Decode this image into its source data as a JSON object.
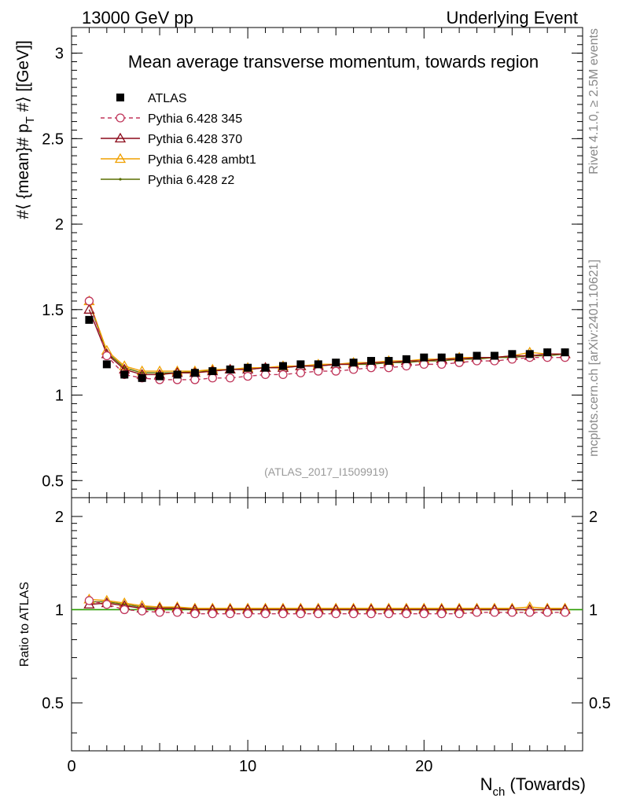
{
  "header": {
    "left": "13000 GeV pp",
    "right": "Underlying Event"
  },
  "side_labels": {
    "rivet": "Rivet 4.1.0, ≥ 2.5M events",
    "mcplots": "mcplots.cern.ch [arXiv:2401.10621]"
  },
  "colors": {
    "atlas": "#000000",
    "p345": "#c0355a",
    "p370": "#8b0a1a",
    "ambt1": "#f0a000",
    "z2": "#5a6e00",
    "ratio_ref": "#2a9d00"
  },
  "chart_data": [
    {
      "type": "line",
      "title": "Mean average transverse momentum, towards region",
      "ylabel": "#⟨ {mean}# p_T #⟩ [[GeV]]",
      "ylabel_parts": {
        "main": "#⟨ {mean}# p",
        "sub": "T",
        "rest": " #⟩ [[GeV]]"
      },
      "xlabel": "",
      "xlim": [
        0,
        29
      ],
      "ylim": [
        0.4,
        3.15
      ],
      "yticks": [
        0.5,
        1,
        1.5,
        2,
        2.5,
        3
      ],
      "ytick_labels": [
        "0.5",
        "1",
        "1.5",
        "2",
        "2.5",
        "3"
      ],
      "watermark": "(ATLAS_2017_I1509919)",
      "x": [
        1,
        2,
        3,
        4,
        5,
        6,
        7,
        8,
        9,
        10,
        11,
        12,
        13,
        14,
        15,
        16,
        17,
        18,
        19,
        20,
        21,
        22,
        23,
        24,
        25,
        26,
        27,
        28
      ],
      "series": [
        {
          "name": "ATLAS",
          "key": "atlas",
          "marker": "square",
          "line": "none",
          "values": [
            1.44,
            1.18,
            1.12,
            1.1,
            1.11,
            1.12,
            1.13,
            1.14,
            1.15,
            1.16,
            1.16,
            1.17,
            1.18,
            1.18,
            1.19,
            1.19,
            1.2,
            1.2,
            1.21,
            1.22,
            1.22,
            1.22,
            1.23,
            1.23,
            1.24,
            1.24,
            1.25,
            1.25
          ]
        },
        {
          "name": "Pythia 6.428 345",
          "key": "p345",
          "marker": "circle-open",
          "line": "dashed",
          "values": [
            1.55,
            1.23,
            1.12,
            1.1,
            1.09,
            1.09,
            1.09,
            1.1,
            1.1,
            1.11,
            1.12,
            1.12,
            1.13,
            1.14,
            1.14,
            1.15,
            1.16,
            1.16,
            1.17,
            1.18,
            1.18,
            1.19,
            1.2,
            1.2,
            1.21,
            1.22,
            1.22,
            1.22
          ]
        },
        {
          "name": "Pythia 6.428 370",
          "key": "p370",
          "marker": "triangle-open",
          "line": "solid",
          "values": [
            1.5,
            1.24,
            1.15,
            1.12,
            1.12,
            1.13,
            1.13,
            1.14,
            1.15,
            1.15,
            1.16,
            1.16,
            1.17,
            1.17,
            1.18,
            1.18,
            1.19,
            1.19,
            1.2,
            1.2,
            1.21,
            1.21,
            1.22,
            1.22,
            1.23,
            1.23,
            1.24,
            1.24
          ]
        },
        {
          "name": "Pythia 6.428 ambt1",
          "key": "ambt1",
          "marker": "triangle-open",
          "line": "solid",
          "values": [
            1.55,
            1.26,
            1.17,
            1.14,
            1.14,
            1.14,
            1.14,
            1.15,
            1.15,
            1.16,
            1.16,
            1.17,
            1.17,
            1.18,
            1.18,
            1.19,
            1.19,
            1.2,
            1.2,
            1.21,
            1.21,
            1.22,
            1.22,
            1.22,
            1.23,
            1.25,
            1.24,
            1.24
          ]
        },
        {
          "name": "Pythia 6.428 z2",
          "key": "z2",
          "marker": "dot",
          "line": "solid",
          "values": [
            1.54,
            1.25,
            1.16,
            1.13,
            1.13,
            1.13,
            1.14,
            1.14,
            1.15,
            1.15,
            1.16,
            1.16,
            1.17,
            1.17,
            1.18,
            1.18,
            1.18,
            1.19,
            1.19,
            1.2,
            1.2,
            1.21,
            1.21,
            1.22,
            1.22,
            1.23,
            1.23,
            1.24
          ]
        }
      ]
    },
    {
      "type": "line",
      "title": "",
      "ylabel": "Ratio to ATLAS",
      "xlabel": "N_ch (Towards)",
      "xlabel_parts": {
        "main": "N",
        "sub": "ch",
        "rest": " (Towards)"
      },
      "xlim": [
        0,
        29
      ],
      "ylim": [
        0.35,
        2.3
      ],
      "yticks": [
        0.5,
        1,
        2
      ],
      "ytick_labels": [
        "0.5",
        "1",
        "2"
      ],
      "xticks": [
        0,
        10,
        20
      ],
      "xtick_labels": [
        "0",
        "10",
        "20"
      ],
      "reference": 1,
      "x": [
        1,
        2,
        3,
        4,
        5,
        6,
        7,
        8,
        9,
        10,
        11,
        12,
        13,
        14,
        15,
        16,
        17,
        18,
        19,
        20,
        21,
        22,
        23,
        24,
        25,
        26,
        27,
        28
      ],
      "series": [
        {
          "name": "Pythia 6.428 345",
          "key": "p345",
          "marker": "circle-open",
          "line": "dashed",
          "values": [
            1.07,
            1.04,
            1.0,
            0.99,
            0.98,
            0.98,
            0.97,
            0.97,
            0.97,
            0.97,
            0.97,
            0.97,
            0.97,
            0.97,
            0.97,
            0.97,
            0.97,
            0.97,
            0.97,
            0.97,
            0.97,
            0.97,
            0.98,
            0.98,
            0.98,
            0.98,
            0.98,
            0.98
          ]
        },
        {
          "name": "Pythia 6.428 370",
          "key": "p370",
          "marker": "triangle-open",
          "line": "solid",
          "values": [
            1.04,
            1.05,
            1.03,
            1.01,
            1.01,
            1.01,
            1.0,
            1.0,
            1.0,
            1.0,
            1.0,
            1.0,
            1.0,
            1.0,
            1.0,
            1.0,
            1.0,
            1.0,
            1.0,
            1.0,
            1.0,
            1.0,
            1.0,
            1.0,
            1.0,
            1.0,
            1.0,
            1.0
          ]
        },
        {
          "name": "Pythia 6.428 ambt1",
          "key": "ambt1",
          "marker": "triangle-open",
          "line": "solid",
          "values": [
            1.08,
            1.07,
            1.05,
            1.03,
            1.02,
            1.02,
            1.01,
            1.01,
            1.01,
            1.01,
            1.01,
            1.01,
            1.01,
            1.01,
            1.01,
            1.01,
            1.01,
            1.01,
            1.01,
            1.01,
            1.01,
            1.01,
            1.01,
            1.01,
            1.01,
            1.02,
            1.01,
            1.01
          ]
        },
        {
          "name": "Pythia 6.428 z2",
          "key": "z2",
          "marker": "dot",
          "line": "solid",
          "values": [
            1.06,
            1.06,
            1.04,
            1.02,
            1.02,
            1.01,
            1.01,
            1.0,
            1.0,
            1.0,
            1.0,
            1.0,
            1.0,
            1.0,
            1.0,
            1.0,
            1.0,
            1.0,
            1.0,
            1.0,
            1.0,
            1.0,
            1.0,
            1.0,
            1.0,
            1.0,
            1.0,
            1.0
          ]
        }
      ]
    }
  ]
}
